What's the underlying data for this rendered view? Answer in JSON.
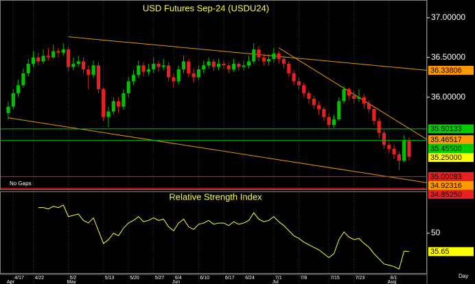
{
  "chart_data": [
    {
      "type": "candlestick",
      "title": "USD Futures Sep-24 (USDU24)",
      "note": "No Gaps",
      "categories": [
        null,
        "4/17",
        null,
        null,
        null,
        "4/22",
        null,
        null,
        null,
        null,
        null,
        null,
        "5/2",
        null,
        null,
        null,
        null,
        null,
        null,
        "5/13",
        null,
        null,
        null,
        null,
        "5/20",
        null,
        null,
        null,
        null,
        "5/27",
        null,
        null,
        null,
        "6/4",
        null,
        null,
        null,
        null,
        "6/10",
        null,
        null,
        null,
        null,
        "6/17",
        null,
        null,
        null,
        "6/24",
        null,
        null,
        null,
        null,
        null,
        "7/1",
        null,
        null,
        null,
        null,
        "7/8",
        null,
        null,
        null,
        null,
        null,
        "7/15",
        null,
        null,
        null,
        null,
        "7/23",
        null,
        null,
        null,
        null,
        null,
        null,
        "8/1",
        null,
        null,
        null,
        null
      ],
      "months": [
        {
          "index": 0,
          "label": "Apr"
        },
        {
          "index": 12,
          "label": "May"
        },
        {
          "index": 33,
          "label": "Jun"
        },
        {
          "index": 53,
          "label": "Jul"
        },
        {
          "index": 76,
          "label": "Aug"
        }
      ],
      "open": [
        35.8,
        35.88,
        36.05,
        36.15,
        36.3,
        36.42,
        36.5,
        36.45,
        36.52,
        36.5,
        36.58,
        36.56,
        36.6,
        36.38,
        36.42,
        36.45,
        36.35,
        36.28,
        36.4,
        36.1,
        35.75,
        35.82,
        35.95,
        35.88,
        36.05,
        36.2,
        36.28,
        36.4,
        36.32,
        36.35,
        36.42,
        36.38,
        36.4,
        36.25,
        36.2,
        36.35,
        36.45,
        36.3,
        36.25,
        36.35,
        36.4,
        36.45,
        36.38,
        36.42,
        36.4,
        36.35,
        36.42,
        36.38,
        36.4,
        36.45,
        36.6,
        36.5,
        36.45,
        36.48,
        36.55,
        36.48,
        36.42,
        36.3,
        36.2,
        36.15,
        36.05,
        35.98,
        35.9,
        35.85,
        35.75,
        35.65,
        35.72,
        35.95,
        36.1,
        36.02,
        35.98,
        36.0,
        35.92,
        35.85,
        35.7,
        35.55,
        35.4,
        35.35,
        35.28,
        35.2,
        35.45
      ],
      "high": [
        35.95,
        36.1,
        36.22,
        36.36,
        36.48,
        36.58,
        36.56,
        36.6,
        36.62,
        36.66,
        36.62,
        36.68,
        36.64,
        36.5,
        36.52,
        36.5,
        36.4,
        36.46,
        36.44,
        36.12,
        35.88,
        36.0,
        36.0,
        36.1,
        36.26,
        36.34,
        36.46,
        36.44,
        36.42,
        36.5,
        36.46,
        36.48,
        36.44,
        36.3,
        36.4,
        36.52,
        36.48,
        36.36,
        36.4,
        36.46,
        36.5,
        36.48,
        36.48,
        36.46,
        36.44,
        36.48,
        36.45,
        36.46,
        36.52,
        36.68,
        36.64,
        36.55,
        36.54,
        36.62,
        36.58,
        36.52,
        36.45,
        36.34,
        36.25,
        36.18,
        36.08,
        36.02,
        35.95,
        35.88,
        35.8,
        35.78,
        36.0,
        36.14,
        36.12,
        36.08,
        36.1,
        36.04,
        35.96,
        35.88,
        35.74,
        35.58,
        35.46,
        35.4,
        35.32,
        35.52,
        35.5
      ],
      "low": [
        35.72,
        35.85,
        36.0,
        36.12,
        36.26,
        36.38,
        36.4,
        36.42,
        36.46,
        36.48,
        36.5,
        36.52,
        36.32,
        36.34,
        36.38,
        36.3,
        36.1,
        36.24,
        36.05,
        35.7,
        35.62,
        35.78,
        35.8,
        35.84,
        36.0,
        36.15,
        36.24,
        36.26,
        36.28,
        36.3,
        36.32,
        36.34,
        36.2,
        36.12,
        36.16,
        36.3,
        36.25,
        36.18,
        36.22,
        36.3,
        36.36,
        36.33,
        36.34,
        36.35,
        36.3,
        36.32,
        36.33,
        36.34,
        36.36,
        36.42,
        36.45,
        36.4,
        36.4,
        36.44,
        36.42,
        36.36,
        36.25,
        36.15,
        36.1,
        36.0,
        35.92,
        35.85,
        35.78,
        35.7,
        35.6,
        35.62,
        35.7,
        35.92,
        35.96,
        35.92,
        35.94,
        35.86,
        35.8,
        35.65,
        35.48,
        35.35,
        35.3,
        35.22,
        35.08,
        35.18,
        35.2
      ],
      "close": [
        35.88,
        36.05,
        36.15,
        36.3,
        36.42,
        36.5,
        36.45,
        36.52,
        36.5,
        36.58,
        36.56,
        36.6,
        36.38,
        36.42,
        36.45,
        36.35,
        36.28,
        36.4,
        36.1,
        35.75,
        35.82,
        35.95,
        35.88,
        36.05,
        36.2,
        36.28,
        36.4,
        36.32,
        36.35,
        36.42,
        36.38,
        36.4,
        36.25,
        36.2,
        36.35,
        36.45,
        36.3,
        36.25,
        36.35,
        36.4,
        36.45,
        36.38,
        36.42,
        36.4,
        36.35,
        36.42,
        36.38,
        36.4,
        36.45,
        36.6,
        36.5,
        36.45,
        36.48,
        36.55,
        36.48,
        36.42,
        36.3,
        36.2,
        36.15,
        36.05,
        35.98,
        35.9,
        35.85,
        35.75,
        35.65,
        35.72,
        35.95,
        36.1,
        36.02,
        35.98,
        36.0,
        35.92,
        35.85,
        35.7,
        35.55,
        35.4,
        35.35,
        35.28,
        35.2,
        35.45,
        35.25
      ],
      "up_color": "#00c000",
      "down_color": "#e82020",
      "ylim": [
        34.84,
        37.18
      ],
      "yticks": [
        {
          "value": 37,
          "label": "37.00000"
        },
        {
          "value": 36.5,
          "label": "36.50000"
        },
        {
          "value": 36,
          "label": "36.00000"
        }
      ],
      "trendlines": [
        {
          "points": [
            [
              12,
              36.76
            ],
            [
              83.6,
              36.33806
            ]
          ],
          "color": "#e89a00"
        },
        {
          "points": [
            [
              0,
              35.74
            ],
            [
              83.6,
              34.92316
            ]
          ],
          "color": "#e89a00"
        },
        {
          "points": [
            [
              54,
              36.62
            ],
            [
              83.6,
              35.46517
            ]
          ],
          "color": "#e89a00"
        }
      ],
      "levels": [
        {
          "value": 36.33806,
          "label": "36.33806",
          "color": "#ff9900",
          "line": false
        },
        {
          "value": 35.60133,
          "label": "35.60133",
          "color": "#00cc00",
          "line": true
        },
        {
          "value": 35.46517,
          "label": "35.46517",
          "color": "#ff9900",
          "line": false
        },
        {
          "value": 35.455,
          "label": "35.45500",
          "color": "#00cc00",
          "line": true
        },
        {
          "value": 35.25,
          "label": "35.25000",
          "color": "#ffff00",
          "line": false
        },
        {
          "value": 35.00083,
          "label": "35.00083",
          "color": "#e82020",
          "line": true
        },
        {
          "value": 34.92316,
          "label": "34.92316",
          "color": "#ff9900",
          "line": false
        },
        {
          "value": 34.8525,
          "label": "34.85250",
          "color": "#e82020",
          "line": true
        }
      ]
    },
    {
      "type": "line",
      "title": "Relative Strength Index",
      "x_axis_label": "Day",
      "values": [
        null,
        null,
        null,
        null,
        null,
        null,
        70,
        70,
        69,
        71,
        70,
        72,
        63,
        64,
        65,
        60,
        58,
        62,
        52,
        42,
        45,
        50,
        48,
        54,
        58,
        60,
        63,
        59,
        60,
        62,
        60,
        61,
        55,
        52,
        58,
        61,
        55,
        53,
        57,
        58,
        60,
        57,
        58,
        58,
        56,
        59,
        57,
        58,
        60,
        66,
        61,
        59,
        60,
        63,
        59,
        56,
        52,
        48,
        46,
        43,
        41,
        39,
        37,
        34,
        31,
        34,
        45,
        51,
        47,
        45,
        46,
        42,
        39,
        34,
        30,
        26,
        25,
        24,
        22,
        36,
        35.65
      ],
      "color": "#ffff40",
      "ylim": [
        20,
        80
      ],
      "yticks": [
        50
      ],
      "levels": [
        {
          "value": 35.65,
          "label": "35.65",
          "color": "#ffff00"
        }
      ]
    }
  ]
}
